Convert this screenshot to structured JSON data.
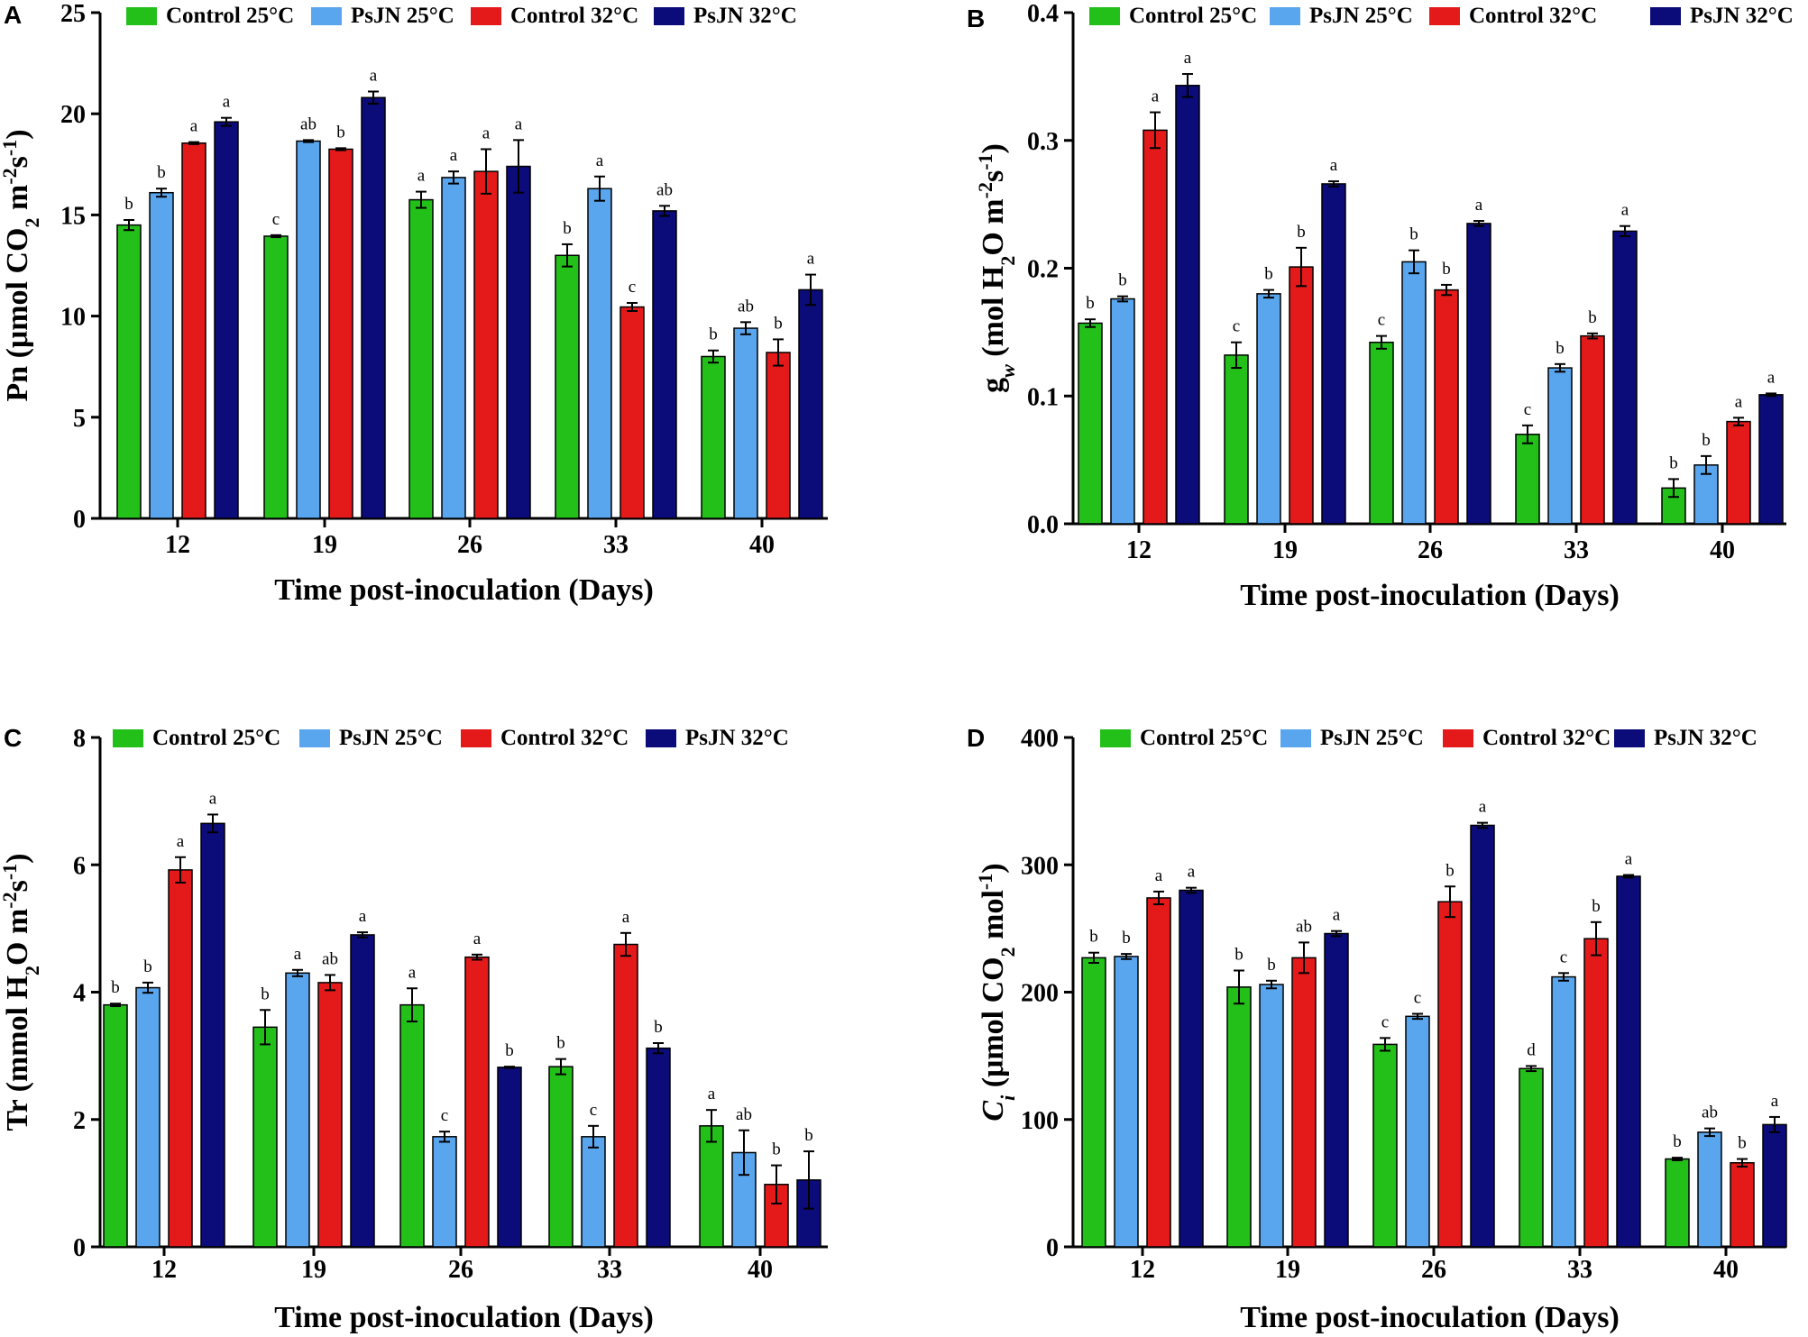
{
  "legend": [
    {
      "name": "Control 25°C",
      "color": "#23c01a"
    },
    {
      "name": "PsJN 25°C",
      "color": "#5aa6ee"
    },
    {
      "name": "Control 32°C",
      "color": "#e41a1a"
    },
    {
      "name": "PsJN 32°C",
      "color": "#0b0b7a"
    }
  ],
  "chart_data": [
    {
      "type": "bar",
      "panel": "A",
      "title": "",
      "xlabel": "Time post-inoculation (Days)",
      "ylabel": {
        "main": "Pn (μmol CO",
        "sub": "2",
        "unit": " m",
        "sup1": "-2",
        "unit2": "s",
        "sup2": "-1",
        "close": ")"
      },
      "categories": [
        "12",
        "19",
        "26",
        "33",
        "40"
      ],
      "ylim": [
        0,
        25
      ],
      "yticks": [
        0,
        5,
        10,
        15,
        20,
        25
      ],
      "ytick_labels": [
        "0",
        "5",
        "10",
        "15",
        "20",
        "25"
      ],
      "series": [
        {
          "name": "Control 25°C",
          "values": [
            14.5,
            13.95,
            15.75,
            13.0,
            8.0
          ],
          "errors": [
            0.25,
            0.05,
            0.4,
            0.55,
            0.3
          ],
          "labels": [
            "b",
            "c",
            "a",
            "b",
            "b"
          ]
        },
        {
          "name": "PsJN 25°C",
          "values": [
            16.1,
            18.65,
            16.85,
            16.3,
            9.4
          ],
          "errors": [
            0.2,
            0.05,
            0.3,
            0.6,
            0.3
          ],
          "labels": [
            "b",
            "ab",
            "a",
            "a",
            "ab"
          ]
        },
        {
          "name": "Control 32°C",
          "values": [
            18.55,
            18.25,
            17.15,
            10.45,
            8.2
          ],
          "errors": [
            0.05,
            0.05,
            1.1,
            0.2,
            0.65
          ],
          "labels": [
            "a",
            "b",
            "a",
            "c",
            "b"
          ]
        },
        {
          "name": "PsJN 32°C",
          "values": [
            19.6,
            20.8,
            17.4,
            15.2,
            11.3
          ],
          "errors": [
            0.2,
            0.3,
            1.3,
            0.25,
            0.75
          ],
          "labels": [
            "a",
            "a",
            "a",
            "ab",
            "a"
          ]
        }
      ]
    },
    {
      "type": "bar",
      "panel": "B",
      "title": "",
      "xlabel": "Time post-inoculation (Days)",
      "ylabel": {
        "main": "g",
        "msub": "w",
        "mid": " (mol H",
        "sub": "2",
        "unit": "O m",
        "sup1": "-2",
        "unit2": "s",
        "sup2": "-1",
        "close": ")"
      },
      "categories": [
        "12",
        "19",
        "26",
        "33",
        "40"
      ],
      "ylim": [
        0,
        0.4
      ],
      "yticks": [
        0,
        0.1,
        0.2,
        0.3,
        0.4
      ],
      "ytick_labels": [
        "0.0",
        "0.1",
        "0.2",
        "0.3",
        "0.4"
      ],
      "series": [
        {
          "name": "Control 25°C",
          "values": [
            0.157,
            0.132,
            0.142,
            0.07,
            0.028
          ],
          "errors": [
            0.003,
            0.01,
            0.005,
            0.007,
            0.007
          ],
          "labels": [
            "b",
            "c",
            "c",
            "c",
            "b"
          ]
        },
        {
          "name": "PsJN 25°C",
          "values": [
            0.176,
            0.18,
            0.205,
            0.122,
            0.046
          ],
          "errors": [
            0.002,
            0.003,
            0.009,
            0.003,
            0.007
          ],
          "labels": [
            "b",
            "b",
            "b",
            "b",
            "b"
          ]
        },
        {
          "name": "Control 32°C",
          "values": [
            0.308,
            0.201,
            0.183,
            0.147,
            0.08
          ],
          "errors": [
            0.014,
            0.015,
            0.004,
            0.002,
            0.003
          ],
          "labels": [
            "a",
            "b",
            "b",
            "b",
            "a"
          ]
        },
        {
          "name": "PsJN 32°C",
          "values": [
            0.343,
            0.266,
            0.235,
            0.229,
            0.101
          ],
          "errors": [
            0.009,
            0.002,
            0.002,
            0.004,
            0.001
          ],
          "labels": [
            "a",
            "a",
            "a",
            "a",
            "a"
          ]
        }
      ]
    },
    {
      "type": "bar",
      "panel": "C",
      "title": "",
      "xlabel": "Time post-inoculation (Days)",
      "ylabel": {
        "main": "Tr (mmol H",
        "sub": "2",
        "unit": "O m",
        "sup1": "-2",
        "unit2": "s",
        "sup2": "-1",
        "close": ")"
      },
      "categories": [
        "12",
        "19",
        "26",
        "33",
        "40"
      ],
      "ylim": [
        0,
        8
      ],
      "yticks": [
        0,
        2,
        4,
        6,
        8
      ],
      "ytick_labels": [
        "0",
        "2",
        "4",
        "6",
        "8"
      ],
      "series": [
        {
          "name": "Control 25°C",
          "values": [
            3.8,
            3.45,
            3.8,
            2.83,
            1.9
          ],
          "errors": [
            0.02,
            0.27,
            0.26,
            0.12,
            0.25
          ],
          "labels": [
            "b",
            "b",
            "a",
            "b",
            "a"
          ]
        },
        {
          "name": "PsJN 25°C",
          "values": [
            4.07,
            4.3,
            1.73,
            1.73,
            1.48
          ],
          "errors": [
            0.08,
            0.05,
            0.08,
            0.17,
            0.35
          ],
          "labels": [
            "b",
            "a",
            "c",
            "c",
            "ab"
          ]
        },
        {
          "name": "Control 32°C",
          "values": [
            5.92,
            4.15,
            4.55,
            4.75,
            0.98
          ],
          "errors": [
            0.2,
            0.12,
            0.04,
            0.18,
            0.3
          ],
          "labels": [
            "a",
            "ab",
            "a",
            "a",
            "b"
          ]
        },
        {
          "name": "PsJN 32°C",
          "values": [
            6.65,
            4.9,
            2.82,
            3.12,
            1.05
          ],
          "errors": [
            0.14,
            0.04,
            0.01,
            0.08,
            0.45
          ],
          "labels": [
            "a",
            "a",
            "b",
            "b",
            "b"
          ]
        }
      ]
    },
    {
      "type": "bar",
      "panel": "D",
      "title": "",
      "xlabel": "Time post-inoculation (Days)",
      "ylabel": {
        "italic": "C",
        "isub": "i",
        "mid": " (μmol CO",
        "sub": "2",
        "unit": " mol",
        "sup1": "",
        "unit2": "",
        "sup2": "-1",
        "close": ")"
      },
      "categories": [
        "12",
        "19",
        "26",
        "33",
        "40"
      ],
      "ylim": [
        0,
        400
      ],
      "yticks": [
        0,
        100,
        200,
        300,
        400
      ],
      "ytick_labels": [
        "0",
        "100",
        "200",
        "300",
        "400"
      ],
      "series": [
        {
          "name": "Control 25°C",
          "values": [
            227,
            204,
            159,
            140,
            69
          ],
          "errors": [
            4,
            13,
            5,
            2,
            1
          ],
          "labels": [
            "b",
            "b",
            "c",
            "d",
            "b"
          ]
        },
        {
          "name": "PsJN 25°C",
          "values": [
            228,
            206,
            181,
            212,
            90
          ],
          "errors": [
            2,
            3,
            2,
            3,
            3
          ],
          "labels": [
            "b",
            "b",
            "c",
            "c",
            "ab"
          ]
        },
        {
          "name": "Control 32°C",
          "values": [
            274,
            227,
            271,
            242,
            66
          ],
          "errors": [
            5,
            12,
            12,
            13,
            3
          ],
          "labels": [
            "a",
            "ab",
            "b",
            "b",
            "b"
          ]
        },
        {
          "name": "PsJN 32°C",
          "values": [
            280,
            246,
            331,
            291,
            96
          ],
          "errors": [
            2,
            2,
            2,
            1,
            6
          ],
          "labels": [
            "a",
            "a",
            "a",
            "a",
            "a"
          ]
        }
      ]
    }
  ]
}
